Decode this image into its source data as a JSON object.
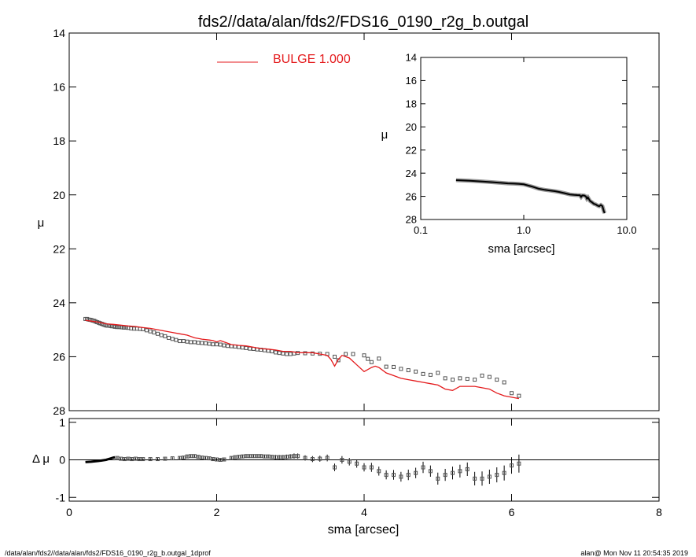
{
  "footer": {
    "left": "/data/alan/fds2//data/alan/fds2/FDS16_0190_r2g_b.outgal_1dprof",
    "right": "alan@  Mon Nov 11 20:54:35 2019"
  },
  "chart_data": [
    {
      "panel": "main",
      "type": "scatter",
      "title": "fds2//data/alan/fds2/FDS16_0190_r2g_b.outgal",
      "xlabel": "",
      "ylabel": "μ",
      "xlim": [
        0,
        8
      ],
      "ylim": [
        28,
        14
      ],
      "y_inverted": true,
      "xticks": [
        0,
        2,
        4,
        6,
        8
      ],
      "xtick_labels": [
        "",
        "",
        "",
        "",
        ""
      ],
      "yticks": [
        14,
        16,
        18,
        20,
        22,
        24,
        26,
        28
      ],
      "ytick_labels": [
        "14",
        "16",
        "18",
        "20",
        "22",
        "24",
        "26",
        "28"
      ],
      "legend": {
        "label": "BULGE  1.000",
        "color": "#e41a1c",
        "placement": "top-center"
      },
      "series": [
        {
          "kind": "points",
          "color": "#555555",
          "x": [
            0.22,
            0.24,
            0.26,
            0.28,
            0.3,
            0.32,
            0.34,
            0.36,
            0.38,
            0.4,
            0.42,
            0.44,
            0.46,
            0.48,
            0.5,
            0.52,
            0.54,
            0.56,
            0.58,
            0.6,
            0.62,
            0.65,
            0.68,
            0.71,
            0.74,
            0.77,
            0.8,
            0.84,
            0.88,
            0.92,
            0.96,
            1.0,
            1.05,
            1.1,
            1.15,
            1.2,
            1.25,
            1.3,
            1.35,
            1.4,
            1.45,
            1.5,
            1.55,
            1.6,
            1.65,
            1.7,
            1.75,
            1.8,
            1.85,
            1.9,
            1.95,
            2.0,
            2.05,
            2.1,
            2.15,
            2.2,
            2.25,
            2.3,
            2.35,
            2.4,
            2.45,
            2.5,
            2.55,
            2.6,
            2.65,
            2.7,
            2.75,
            2.8,
            2.85,
            2.9,
            2.95,
            3.0,
            3.05,
            3.1,
            3.2,
            3.3,
            3.4,
            3.5,
            3.6,
            3.65,
            3.75,
            3.85,
            4.0,
            4.05,
            4.1,
            4.2,
            4.3,
            4.4,
            4.5,
            4.6,
            4.7,
            4.8,
            4.9,
            5.0,
            5.1,
            5.2,
            5.3,
            5.4,
            5.5,
            5.6,
            5.7,
            5.8,
            5.9,
            6.0,
            6.1
          ],
          "y": [
            24.6,
            24.6,
            24.62,
            24.63,
            24.64,
            24.66,
            24.67,
            24.7,
            24.72,
            24.74,
            24.76,
            24.78,
            24.8,
            24.82,
            24.84,
            24.85,
            24.85,
            24.86,
            24.87,
            24.87,
            24.89,
            24.9,
            24.9,
            24.91,
            24.92,
            24.92,
            24.93,
            24.95,
            24.96,
            24.96,
            24.97,
            24.98,
            25.02,
            25.06,
            25.1,
            25.15,
            25.2,
            25.24,
            25.3,
            25.34,
            25.38,
            25.42,
            25.42,
            25.44,
            25.46,
            25.46,
            25.48,
            25.49,
            25.5,
            25.52,
            25.54,
            25.54,
            25.55,
            25.58,
            25.6,
            25.61,
            25.62,
            25.64,
            25.66,
            25.68,
            25.7,
            25.71,
            25.73,
            25.74,
            25.76,
            25.78,
            25.8,
            25.84,
            25.86,
            25.88,
            25.9,
            25.9,
            25.88,
            25.86,
            25.87,
            25.88,
            25.89,
            25.9,
            26.0,
            26.13,
            25.9,
            25.9,
            25.95,
            26.08,
            26.2,
            26.07,
            26.37,
            26.38,
            26.45,
            26.5,
            26.55,
            26.64,
            26.67,
            26.6,
            26.8,
            26.85,
            26.8,
            26.82,
            26.85,
            26.7,
            26.75,
            26.85,
            26.95,
            27.35,
            27.45
          ]
        },
        {
          "kind": "line",
          "name": "BULGE  1.000",
          "color": "#e41a1c",
          "x": [
            0.22,
            0.3,
            0.4,
            0.5,
            0.6,
            0.7,
            0.8,
            0.9,
            1.0,
            1.1,
            1.2,
            1.3,
            1.4,
            1.5,
            1.6,
            1.7,
            1.8,
            1.9,
            1.95,
            2.0,
            2.05,
            2.1,
            2.2,
            2.3,
            2.4,
            2.5,
            2.6,
            2.7,
            2.8,
            2.9,
            3.0,
            3.1,
            3.2,
            3.3,
            3.4,
            3.5,
            3.55,
            3.6,
            3.65,
            3.7,
            3.8,
            3.9,
            4.0,
            4.1,
            4.15,
            4.2,
            4.3,
            4.4,
            4.5,
            4.6,
            4.7,
            4.8,
            4.9,
            5.0,
            5.1,
            5.2,
            5.3,
            5.4,
            5.5,
            5.6,
            5.7,
            5.8,
            5.9,
            6.0,
            6.1
          ],
          "y": [
            24.65,
            24.68,
            24.72,
            24.78,
            24.8,
            24.83,
            24.86,
            24.88,
            24.92,
            24.95,
            25.0,
            25.05,
            25.1,
            25.15,
            25.2,
            25.3,
            25.35,
            25.38,
            25.4,
            25.45,
            25.4,
            25.45,
            25.55,
            25.58,
            25.6,
            25.65,
            25.7,
            25.72,
            25.75,
            25.8,
            25.8,
            25.85,
            25.85,
            25.85,
            25.9,
            25.95,
            26.1,
            26.35,
            26.1,
            25.95,
            26.05,
            26.3,
            26.55,
            26.4,
            26.35,
            26.4,
            26.6,
            26.7,
            26.8,
            26.85,
            26.9,
            26.95,
            27.0,
            27.05,
            27.2,
            27.25,
            27.1,
            27.1,
            27.1,
            27.15,
            27.2,
            27.35,
            27.45,
            27.5,
            27.55
          ]
        }
      ]
    },
    {
      "panel": "inset",
      "type": "scatter",
      "xlabel": "sma [arcsec]",
      "ylabel": "μ",
      "x_scale": "log",
      "xlim": [
        0.1,
        10.0
      ],
      "ylim": [
        28,
        14
      ],
      "y_inverted": true,
      "xticks": [
        0.1,
        1.0,
        10.0
      ],
      "xtick_labels": [
        "0.1",
        "1.0",
        "10.0"
      ],
      "yticks": [
        14,
        16,
        18,
        20,
        22,
        24,
        26,
        28
      ],
      "ytick_labels": [
        "14",
        "16",
        "18",
        "20",
        "22",
        "24",
        "26",
        "28"
      ],
      "series": [
        {
          "kind": "line",
          "color": "#000000",
          "x": [
            0.22,
            0.3,
            0.4,
            0.5,
            0.6,
            0.7,
            0.8,
            0.9,
            1.0,
            1.2,
            1.4,
            1.6,
            1.8,
            2.0,
            2.2,
            2.5,
            2.8,
            3.1,
            3.3,
            3.5,
            3.6,
            3.7,
            3.85,
            4.0,
            4.1,
            4.2,
            4.4,
            4.6,
            4.8,
            5.0,
            5.2,
            5.4,
            5.6,
            5.8,
            6.0,
            6.1
          ],
          "y": [
            24.6,
            24.65,
            24.72,
            24.78,
            24.83,
            24.88,
            24.9,
            24.93,
            24.96,
            25.15,
            25.34,
            25.44,
            25.5,
            25.55,
            25.62,
            25.73,
            25.84,
            25.88,
            25.89,
            25.9,
            26.05,
            25.92,
            25.93,
            26.0,
            26.2,
            26.1,
            26.4,
            26.52,
            26.65,
            26.7,
            26.8,
            26.85,
            26.75,
            26.85,
            27.3,
            27.45
          ]
        }
      ]
    },
    {
      "panel": "residual",
      "type": "scatter",
      "xlabel": "sma [arcsec]",
      "ylabel": "Δ μ",
      "xlim": [
        0,
        8
      ],
      "ylim": [
        -1.1,
        1.1
      ],
      "xticks": [
        0,
        2,
        4,
        6,
        8
      ],
      "xtick_labels": [
        "0",
        "2",
        "4",
        "6",
        "8"
      ],
      "yticks": [
        -1,
        0,
        1
      ],
      "ytick_labels": [
        "-1",
        "0",
        "1"
      ],
      "reference_line": 0,
      "series": [
        {
          "kind": "line",
          "color": "#000000",
          "x": [
            0.22,
            0.3,
            0.4,
            0.5,
            0.55,
            0.6,
            0.62
          ],
          "y": [
            -0.06,
            -0.05,
            -0.03,
            0.0,
            0.03,
            0.06,
            0.07
          ]
        },
        {
          "kind": "points_with_errorbars",
          "color": "#555555",
          "x": [
            0.65,
            0.7,
            0.75,
            0.8,
            0.85,
            0.9,
            0.95,
            1.0,
            1.1,
            1.2,
            1.3,
            1.4,
            1.5,
            1.55,
            1.6,
            1.65,
            1.7,
            1.75,
            1.8,
            1.85,
            1.9,
            1.95,
            2.0,
            2.05,
            2.1,
            2.2,
            2.25,
            2.3,
            2.35,
            2.4,
            2.45,
            2.5,
            2.55,
            2.6,
            2.65,
            2.7,
            2.75,
            2.8,
            2.85,
            2.9,
            2.95,
            3.0,
            3.05,
            3.1,
            3.2,
            3.3,
            3.4,
            3.5,
            3.6,
            3.7,
            3.8,
            3.9,
            4.0,
            4.1,
            4.2,
            4.3,
            4.4,
            4.5,
            4.6,
            4.7,
            4.8,
            4.9,
            5.0,
            5.1,
            5.2,
            5.3,
            5.4,
            5.5,
            5.6,
            5.7,
            5.8,
            5.9,
            6.0,
            6.1
          ],
          "y": [
            0.05,
            0.03,
            0.02,
            0.03,
            0.02,
            0.03,
            0.02,
            0.02,
            0.02,
            0.02,
            0.03,
            0.04,
            0.05,
            0.06,
            0.09,
            0.1,
            0.1,
            0.08,
            0.06,
            0.05,
            0.04,
            0.02,
            0.01,
            0.0,
            0.01,
            0.05,
            0.07,
            0.08,
            0.09,
            0.1,
            0.1,
            0.1,
            0.1,
            0.1,
            0.09,
            0.09,
            0.08,
            0.07,
            0.07,
            0.07,
            0.08,
            0.09,
            0.1,
            0.1,
            0.05,
            0.02,
            0.03,
            0.05,
            -0.2,
            0.0,
            -0.05,
            -0.1,
            -0.2,
            -0.2,
            -0.3,
            -0.4,
            -0.4,
            -0.45,
            -0.4,
            -0.35,
            -0.2,
            -0.3,
            -0.5,
            -0.4,
            -0.35,
            -0.3,
            -0.25,
            -0.5,
            -0.5,
            -0.45,
            -0.4,
            -0.35,
            -0.15,
            -0.1
          ],
          "err": [
            0.03,
            0.03,
            0.03,
            0.03,
            0.03,
            0.03,
            0.03,
            0.03,
            0.03,
            0.03,
            0.03,
            0.03,
            0.04,
            0.04,
            0.04,
            0.04,
            0.04,
            0.04,
            0.04,
            0.04,
            0.04,
            0.04,
            0.04,
            0.04,
            0.04,
            0.04,
            0.04,
            0.05,
            0.05,
            0.05,
            0.05,
            0.05,
            0.05,
            0.05,
            0.05,
            0.05,
            0.05,
            0.06,
            0.06,
            0.06,
            0.06,
            0.06,
            0.07,
            0.07,
            0.07,
            0.08,
            0.08,
            0.09,
            0.1,
            0.1,
            0.1,
            0.11,
            0.11,
            0.12,
            0.12,
            0.12,
            0.13,
            0.13,
            0.14,
            0.14,
            0.15,
            0.15,
            0.16,
            0.16,
            0.17,
            0.17,
            0.18,
            0.18,
            0.19,
            0.19,
            0.2,
            0.2,
            0.22,
            0.24
          ]
        }
      ]
    }
  ]
}
